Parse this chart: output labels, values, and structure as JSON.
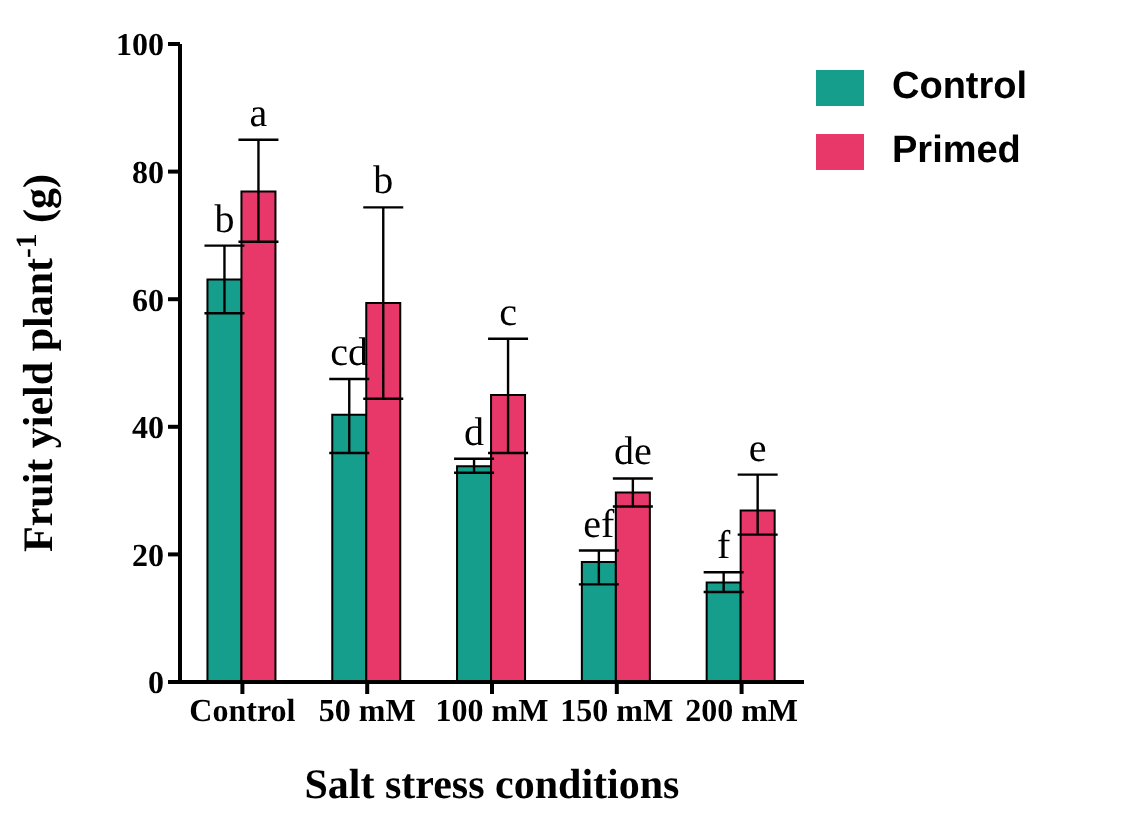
{
  "chart_data": {
    "type": "bar",
    "xlabel": "Salt stress conditions",
    "ylabel": "Fruit yield plant$^{-1}$ (g)",
    "categories": [
      "Control",
      "50 mM",
      "100 mM",
      "150 mM",
      "200 mM"
    ],
    "series": [
      {
        "name": "Control",
        "color": "#169e8c",
        "values": [
          63.1,
          41.9,
          33.8,
          18.8,
          15.6
        ],
        "errors": [
          [
            57.8,
            68.4
          ],
          [
            35.9,
            47.5
          ],
          [
            32.8,
            35
          ],
          [
            15.3,
            20.6
          ],
          [
            14.1,
            17.2
          ]
        ],
        "value_labels": [
          "b",
          "cd",
          "d",
          "ef",
          "f"
        ]
      },
      {
        "name": "Primed",
        "color": "#e8386a",
        "values": [
          76.9,
          59.4,
          45,
          29.7,
          26.9
        ],
        "errors": [
          [
            69,
            85
          ],
          [
            44.4,
            74.4
          ],
          [
            35.9,
            53.8
          ],
          [
            27.5,
            31.9
          ],
          [
            23.1,
            32.5
          ]
        ],
        "value_labels": [
          "a",
          "b",
          "c",
          "de",
          "e"
        ]
      }
    ],
    "ylim": [
      0,
      100
    ],
    "yticks": [
      0,
      20,
      40,
      60,
      80,
      100
    ],
    "legend": "top right"
  }
}
